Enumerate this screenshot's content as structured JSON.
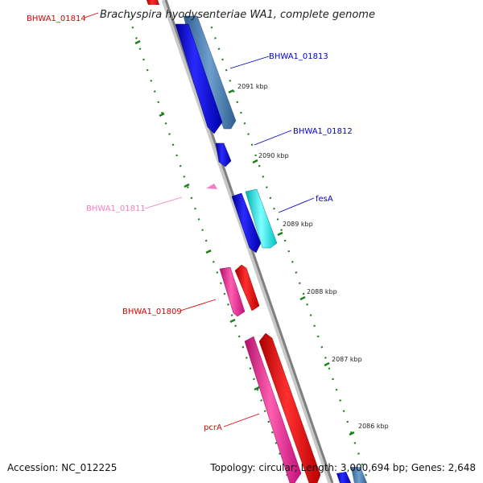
{
  "title": "Brachyspira hyodysenteriae WA1, complete genome",
  "footer": {
    "accession": "Accession: NC_012225",
    "summary": "Topology: circular; Length: 3,000,694 bp; Genes: 2,648"
  },
  "colors": {
    "backbone": "#7f7f7f",
    "tick": "#1f7f1f",
    "forward_cds": "#0000ee",
    "forward_alt": "#4f7fb0",
    "forward_cyan": "#00e0e0",
    "reverse_cds": "#ee0000",
    "reverse_pink": "#ee1f8f",
    "reverse_light": "#f07fbf"
  },
  "ticks": [
    {
      "label": "2091 kbp"
    },
    {
      "label": "2090 kbp"
    },
    {
      "label": "2089 kbp"
    },
    {
      "label": "2088 kbp"
    },
    {
      "label": "2087 kbp"
    },
    {
      "label": "2086 kbp"
    }
  ],
  "gene_labels": [
    {
      "name": "BHWA1_01814",
      "color": "#dd0000"
    },
    {
      "name": "BHWA1_01813",
      "color": "#0000cc"
    },
    {
      "name": "BHWA1_01812",
      "color": "#0000cc"
    },
    {
      "name": "fesA",
      "color": "#0000cc"
    },
    {
      "name": "BHWA1_01811",
      "color": "#f07fbf"
    },
    {
      "name": "BHWA1_01809",
      "color": "#dd0000"
    },
    {
      "name": "pcrA",
      "color": "#dd0000"
    }
  ]
}
